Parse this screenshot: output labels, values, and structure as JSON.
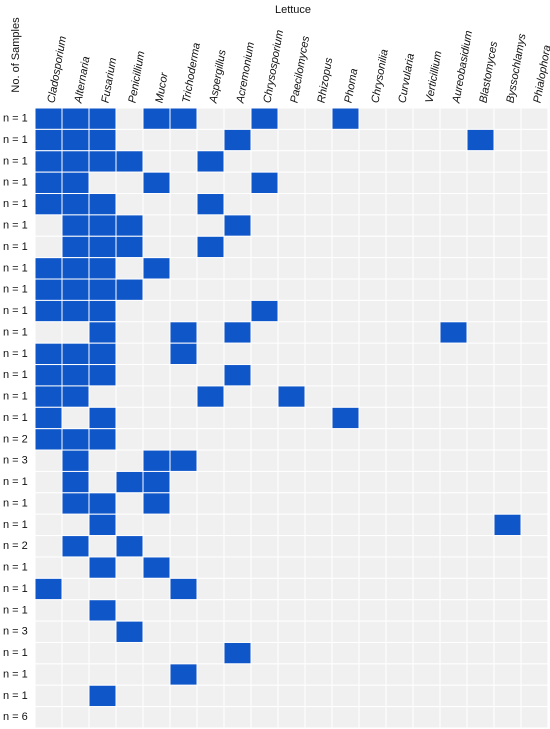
{
  "chart_data": {
    "type": "heatmap",
    "title": "Lettuce",
    "y_axis_label": "No. of Samples",
    "categories": [
      "Cladosporium",
      "Alternaria",
      "Fusarium",
      "Penicillium",
      "Mucor",
      "Trichoderma",
      "Aspergillus",
      "Acremonium",
      "Chrysosporium",
      "Paecilomyces",
      "Rhizopus",
      "Phoma",
      "Chrysonilia",
      "Curvularia",
      "Verticillium",
      "Aureobasidium",
      "Blastomyces",
      "Byssochlamys",
      "Phialophora"
    ],
    "y_categories": [
      "n = 1",
      "n = 1",
      "n = 1",
      "n = 1",
      "n = 1",
      "n = 1",
      "n = 1",
      "n = 1",
      "n = 1",
      "n = 1",
      "n = 1",
      "n = 1",
      "n = 1",
      "n = 1",
      "n = 1",
      "n = 2",
      "n = 3",
      "n = 1",
      "n = 1",
      "n = 1",
      "n = 2",
      "n = 1",
      "n = 1",
      "n = 1",
      "n = 3",
      "n = 1",
      "n = 1",
      "n = 1",
      "n = 6"
    ],
    "colors": [
      "#f0f0f0",
      "#0f56c9"
    ],
    "values": [
      [
        1,
        1,
        1,
        0,
        1,
        1,
        0,
        0,
        1,
        0,
        0,
        1,
        0,
        0,
        0,
        0,
        0,
        0,
        0
      ],
      [
        1,
        1,
        1,
        0,
        0,
        0,
        0,
        1,
        0,
        0,
        0,
        0,
        0,
        0,
        0,
        0,
        1,
        0,
        0
      ],
      [
        1,
        1,
        1,
        1,
        0,
        0,
        1,
        0,
        0,
        0,
        0,
        0,
        0,
        0,
        0,
        0,
        0,
        0,
        0
      ],
      [
        1,
        1,
        0,
        0,
        1,
        0,
        0,
        0,
        1,
        0,
        0,
        0,
        0,
        0,
        0,
        0,
        0,
        0,
        0
      ],
      [
        1,
        1,
        1,
        0,
        0,
        0,
        1,
        0,
        0,
        0,
        0,
        0,
        0,
        0,
        0,
        0,
        0,
        0,
        0
      ],
      [
        0,
        1,
        1,
        1,
        0,
        0,
        0,
        1,
        0,
        0,
        0,
        0,
        0,
        0,
        0,
        0,
        0,
        0,
        0
      ],
      [
        0,
        1,
        1,
        1,
        0,
        0,
        1,
        0,
        0,
        0,
        0,
        0,
        0,
        0,
        0,
        0,
        0,
        0,
        0
      ],
      [
        1,
        1,
        1,
        0,
        1,
        0,
        0,
        0,
        0,
        0,
        0,
        0,
        0,
        0,
        0,
        0,
        0,
        0,
        0
      ],
      [
        1,
        1,
        1,
        1,
        0,
        0,
        0,
        0,
        0,
        0,
        0,
        0,
        0,
        0,
        0,
        0,
        0,
        0,
        0
      ],
      [
        1,
        1,
        1,
        0,
        0,
        0,
        0,
        0,
        1,
        0,
        0,
        0,
        0,
        0,
        0,
        0,
        0,
        0,
        0
      ],
      [
        0,
        0,
        1,
        0,
        0,
        1,
        0,
        1,
        0,
        0,
        0,
        0,
        0,
        0,
        0,
        1,
        0,
        0,
        0
      ],
      [
        1,
        1,
        1,
        0,
        0,
        1,
        0,
        0,
        0,
        0,
        0,
        0,
        0,
        0,
        0,
        0,
        0,
        0,
        0
      ],
      [
        1,
        1,
        1,
        0,
        0,
        0,
        0,
        1,
        0,
        0,
        0,
        0,
        0,
        0,
        0,
        0,
        0,
        0,
        0
      ],
      [
        1,
        1,
        0,
        0,
        0,
        0,
        1,
        0,
        0,
        1,
        0,
        0,
        0,
        0,
        0,
        0,
        0,
        0,
        0
      ],
      [
        1,
        0,
        1,
        0,
        0,
        0,
        0,
        0,
        0,
        0,
        0,
        1,
        0,
        0,
        0,
        0,
        0,
        0,
        0
      ],
      [
        1,
        1,
        1,
        0,
        0,
        0,
        0,
        0,
        0,
        0,
        0,
        0,
        0,
        0,
        0,
        0,
        0,
        0,
        0
      ],
      [
        0,
        1,
        0,
        0,
        1,
        1,
        0,
        0,
        0,
        0,
        0,
        0,
        0,
        0,
        0,
        0,
        0,
        0,
        0
      ],
      [
        0,
        1,
        0,
        1,
        1,
        0,
        0,
        0,
        0,
        0,
        0,
        0,
        0,
        0,
        0,
        0,
        0,
        0,
        0
      ],
      [
        0,
        1,
        1,
        0,
        1,
        0,
        0,
        0,
        0,
        0,
        0,
        0,
        0,
        0,
        0,
        0,
        0,
        0,
        0
      ],
      [
        0,
        0,
        1,
        0,
        0,
        0,
        0,
        0,
        0,
        0,
        0,
        0,
        0,
        0,
        0,
        0,
        0,
        1,
        0
      ],
      [
        0,
        1,
        0,
        1,
        0,
        0,
        0,
        0,
        0,
        0,
        0,
        0,
        0,
        0,
        0,
        0,
        0,
        0,
        0
      ],
      [
        0,
        0,
        1,
        0,
        1,
        0,
        0,
        0,
        0,
        0,
        0,
        0,
        0,
        0,
        0,
        0,
        0,
        0,
        0
      ],
      [
        1,
        0,
        0,
        0,
        0,
        1,
        0,
        0,
        0,
        0,
        0,
        0,
        0,
        0,
        0,
        0,
        0,
        0,
        0
      ],
      [
        0,
        0,
        1,
        0,
        0,
        0,
        0,
        0,
        0,
        0,
        0,
        0,
        0,
        0,
        0,
        0,
        0,
        0,
        0
      ],
      [
        0,
        0,
        0,
        1,
        0,
        0,
        0,
        0,
        0,
        0,
        0,
        0,
        0,
        0,
        0,
        0,
        0,
        0,
        0
      ],
      [
        0,
        0,
        0,
        0,
        0,
        0,
        0,
        1,
        0,
        0,
        0,
        0,
        0,
        0,
        0,
        0,
        0,
        0,
        0
      ],
      [
        0,
        0,
        0,
        0,
        0,
        1,
        0,
        0,
        0,
        0,
        0,
        0,
        0,
        0,
        0,
        0,
        0,
        0,
        0
      ],
      [
        0,
        0,
        1,
        0,
        0,
        0,
        0,
        0,
        0,
        0,
        0,
        0,
        0,
        0,
        0,
        0,
        0,
        0,
        0
      ],
      [
        0,
        0,
        0,
        0,
        0,
        0,
        0,
        0,
        0,
        0,
        0,
        0,
        0,
        0,
        0,
        0,
        0,
        0,
        0
      ]
    ]
  }
}
